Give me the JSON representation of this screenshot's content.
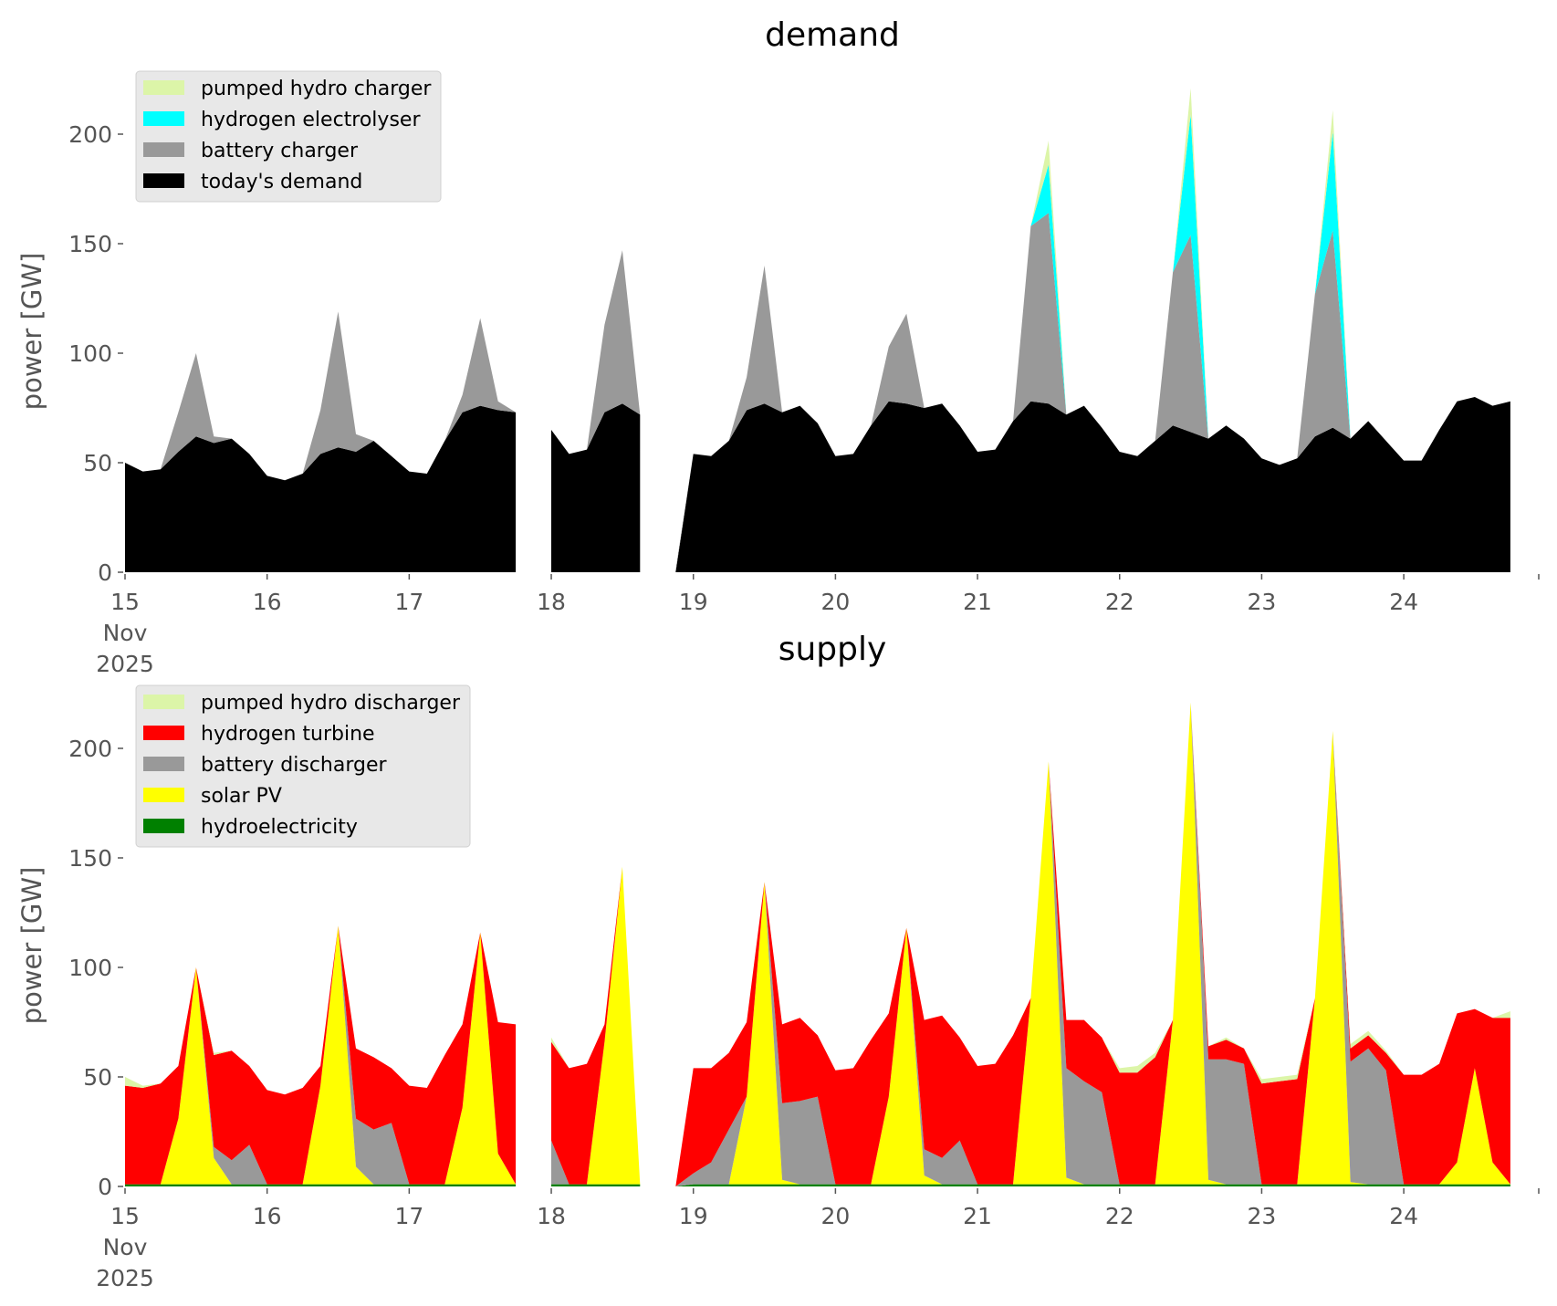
{
  "chart_data": [
    {
      "type": "area",
      "stacked": true,
      "title": "demand",
      "xlabel": "",
      "ylabel": "power [GW]",
      "xlim": [
        "2025-11-15 00:00",
        "2025-11-25 00:00"
      ],
      "ylim": [
        0,
        230
      ],
      "yticks": [
        0,
        50,
        100,
        150,
        200
      ],
      "xtick_labels": [
        [
          "15",
          "Nov",
          "2025"
        ],
        [
          "16"
        ],
        [
          "17"
        ],
        [
          "18"
        ],
        [
          "19"
        ],
        [
          "20"
        ],
        [
          "21"
        ],
        [
          "22"
        ],
        [
          "23"
        ],
        [
          "24"
        ]
      ],
      "grid": false,
      "legend_position": "top-left",
      "x_days": [
        0,
        0.125,
        0.25,
        0.375,
        0.5,
        0.625,
        0.75,
        0.875,
        1,
        1.125,
        1.25,
        1.375,
        1.5,
        1.625,
        1.75,
        1.875,
        2,
        2.125,
        2.25,
        2.375,
        2.5,
        2.625,
        2.75,
        2.875,
        3,
        3.125,
        3.25,
        3.375,
        3.5,
        3.625,
        3.75,
        3.875,
        4,
        4.125,
        4.25,
        4.375,
        4.5,
        4.625,
        4.75,
        4.875,
        5,
        5.125,
        5.25,
        5.375,
        5.5,
        5.625,
        5.75,
        5.875,
        6,
        6.125,
        6.25,
        6.375,
        6.5,
        6.625,
        6.75,
        6.875,
        7,
        7.125,
        7.25,
        7.375,
        7.5,
        7.625,
        7.75,
        7.875,
        8,
        8.125,
        8.25,
        8.375,
        8.5,
        8.625,
        8.75,
        8.875,
        9,
        9.125,
        9.25,
        9.375,
        9.5,
        9.625,
        9.75
      ],
      "series": [
        {
          "name": "today's demand",
          "color": "#000000",
          "values": [
            50,
            46,
            47,
            55,
            62,
            59,
            61,
            54,
            44,
            42,
            45,
            54,
            57,
            55,
            60,
            53,
            46,
            45,
            60,
            73,
            76,
            74,
            73,
            null,
            65,
            54,
            56,
            73,
            77,
            72,
            null,
            0,
            54,
            53,
            60,
            74,
            77,
            73,
            76,
            68,
            53,
            54,
            67,
            78,
            77,
            75,
            77,
            67,
            55,
            56,
            69,
            78,
            77,
            72,
            76,
            66,
            55,
            53,
            60,
            67,
            64,
            61,
            67,
            61,
            52,
            49,
            52,
            62,
            66,
            61,
            69,
            60,
            51,
            51,
            65,
            78,
            80,
            76,
            78
          ]
        },
        {
          "name": "battery charger",
          "color": "#999999",
          "values": [
            0,
            0,
            0,
            18,
            38,
            3,
            0,
            0,
            0,
            0,
            0,
            20,
            62,
            8,
            0,
            0,
            0,
            0,
            0,
            8,
            40,
            4,
            0,
            null,
            0,
            0,
            0,
            40,
            70,
            0,
            null,
            1,
            0,
            0,
            0,
            15,
            63,
            0,
            0,
            0,
            0,
            0,
            0,
            25,
            41,
            0,
            0,
            0,
            0,
            0,
            0,
            80,
            87,
            0,
            0,
            0,
            0,
            0,
            0,
            70,
            90,
            0,
            0,
            0,
            0,
            0,
            0,
            65,
            90,
            0,
            0,
            0,
            0,
            0,
            0,
            0,
            0,
            0,
            0
          ]
        },
        {
          "name": "hydrogen electrolyser",
          "color": "#00ffff",
          "values": [
            0,
            0,
            0,
            0,
            0,
            0,
            0,
            0,
            0,
            0,
            0,
            0,
            0,
            0,
            0,
            0,
            0,
            0,
            0,
            0,
            0,
            0,
            0,
            null,
            0,
            0,
            0,
            0,
            0,
            0,
            null,
            0,
            0,
            0,
            0,
            0,
            0,
            0,
            0,
            0,
            0,
            0,
            0,
            0,
            0,
            0,
            0,
            0,
            0,
            0,
            0,
            0,
            22,
            0,
            0,
            0,
            0,
            0,
            0,
            0,
            55,
            0,
            0,
            0,
            0,
            0,
            0,
            0,
            45,
            0,
            0,
            0,
            0,
            0,
            0,
            0,
            0,
            0,
            0
          ]
        },
        {
          "name": "pumped hydro charger",
          "color": "#dcf5a8",
          "values": [
            0,
            0,
            0,
            0,
            0,
            0,
            0,
            0,
            0,
            0,
            0,
            0,
            0,
            0,
            0,
            0,
            0,
            0,
            0,
            0,
            0,
            0,
            0,
            null,
            0,
            0,
            0,
            0,
            0,
            0,
            null,
            0,
            0,
            0,
            0,
            0,
            0,
            0,
            0,
            0,
            0,
            0,
            0,
            0,
            0,
            0,
            0,
            0,
            0,
            0,
            0,
            0,
            11,
            0,
            0,
            0,
            0,
            0,
            0,
            0,
            12,
            0,
            0,
            0,
            0,
            0,
            0,
            0,
            10,
            0,
            0,
            0,
            0,
            0,
            0,
            0,
            0,
            0,
            0
          ]
        }
      ],
      "legend": [
        "pumped hydro charger",
        "hydrogen electrolyser",
        "battery charger",
        "today's demand"
      ]
    },
    {
      "type": "area",
      "stacked": true,
      "title": "supply",
      "xlabel": "",
      "ylabel": "power [GW]",
      "xlim": [
        "2025-11-15 00:00",
        "2025-11-25 00:00"
      ],
      "ylim": [
        0,
        230
      ],
      "yticks": [
        0,
        50,
        100,
        150,
        200
      ],
      "xtick_labels": [
        [
          "15",
          "Nov",
          "2025"
        ],
        [
          "16"
        ],
        [
          "17"
        ],
        [
          "18"
        ],
        [
          "19"
        ],
        [
          "20"
        ],
        [
          "21"
        ],
        [
          "22"
        ],
        [
          "23"
        ],
        [
          "24"
        ]
      ],
      "grid": false,
      "legend_position": "top-left",
      "x_days": [
        0,
        0.125,
        0.25,
        0.375,
        0.5,
        0.625,
        0.75,
        0.875,
        1,
        1.125,
        1.25,
        1.375,
        1.5,
        1.625,
        1.75,
        1.875,
        2,
        2.125,
        2.25,
        2.375,
        2.5,
        2.625,
        2.75,
        2.875,
        3,
        3.125,
        3.25,
        3.375,
        3.5,
        3.625,
        3.75,
        3.875,
        4,
        4.125,
        4.25,
        4.375,
        4.5,
        4.625,
        4.75,
        4.875,
        5,
        5.125,
        5.25,
        5.375,
        5.5,
        5.625,
        5.75,
        5.875,
        6,
        6.125,
        6.25,
        6.375,
        6.5,
        6.625,
        6.75,
        6.875,
        7,
        7.125,
        7.25,
        7.375,
        7.5,
        7.625,
        7.75,
        7.875,
        8,
        8.125,
        8.25,
        8.375,
        8.5,
        8.625,
        8.75,
        8.875,
        9,
        9.125,
        9.25,
        9.375,
        9.5,
        9.625,
        9.75
      ],
      "series": [
        {
          "name": "hydroelectricity",
          "color": "#008000",
          "values": [
            1,
            1,
            1,
            1,
            1,
            1,
            1,
            1,
            1,
            1,
            1,
            1,
            1,
            1,
            1,
            1,
            1,
            1,
            1,
            1,
            1,
            1,
            1,
            null,
            1,
            1,
            1,
            1,
            1,
            1,
            null,
            0,
            1,
            1,
            1,
            1,
            1,
            1,
            1,
            1,
            1,
            1,
            1,
            1,
            1,
            1,
            1,
            1,
            1,
            1,
            1,
            1,
            1,
            1,
            1,
            1,
            1,
            1,
            1,
            1,
            1,
            1,
            1,
            1,
            1,
            1,
            1,
            1,
            1,
            1,
            1,
            1,
            1,
            1,
            1,
            1,
            1,
            1,
            1
          ]
        },
        {
          "name": "solar PV",
          "color": "#ffff00",
          "values": [
            0,
            0,
            0,
            30,
            99,
            12,
            0,
            0,
            0,
            0,
            0,
            45,
            118,
            8,
            0,
            0,
            0,
            0,
            0,
            35,
            115,
            14,
            0,
            null,
            0,
            0,
            0,
            65,
            145,
            0,
            null,
            0,
            0,
            0,
            0,
            40,
            138,
            2,
            0,
            0,
            0,
            0,
            0,
            40,
            117,
            4,
            0,
            0,
            0,
            0,
            0,
            85,
            193,
            3,
            0,
            0,
            0,
            0,
            0,
            75,
            220,
            2,
            0,
            0,
            0,
            0,
            0,
            85,
            207,
            1,
            0,
            0,
            0,
            0,
            0,
            10,
            53,
            10,
            0
          ]
        },
        {
          "name": "battery discharger",
          "color": "#999999",
          "values": [
            0,
            0,
            0,
            0,
            0,
            5,
            11,
            18,
            0,
            0,
            0,
            0,
            0,
            22,
            25,
            28,
            0,
            0,
            0,
            0,
            0,
            0,
            0,
            null,
            20,
            0,
            0,
            0,
            0,
            0,
            null,
            0,
            5,
            10,
            25,
            0,
            0,
            35,
            38,
            40,
            0,
            0,
            0,
            0,
            0,
            12,
            12,
            20,
            0,
            0,
            0,
            0,
            0,
            50,
            47,
            42,
            0,
            0,
            0,
            0,
            0,
            55,
            57,
            55,
            0,
            0,
            0,
            0,
            0,
            55,
            62,
            52,
            0,
            0,
            0,
            0,
            0,
            0,
            0
          ]
        },
        {
          "name": "hydrogen turbine",
          "color": "#ff0000",
          "values": [
            45,
            44,
            46,
            24,
            0,
            42,
            50,
            36,
            43,
            41,
            44,
            9,
            0,
            32,
            33,
            25,
            45,
            44,
            59,
            38,
            0,
            60,
            73,
            null,
            45,
            53,
            55,
            8,
            0,
            0,
            null,
            0,
            48,
            43,
            35,
            34,
            0,
            36,
            38,
            28,
            52,
            53,
            66,
            38,
            0,
            59,
            65,
            47,
            54,
            55,
            68,
            0,
            0,
            22,
            28,
            25,
            51,
            51,
            58,
            0,
            0,
            6,
            9,
            7,
            46,
            47,
            48,
            0,
            0,
            6,
            6,
            8,
            50,
            50,
            55,
            68,
            27,
            66,
            76
          ]
        },
        {
          "name": "pumped hydro discharger",
          "color": "#dcf5a8",
          "values": [
            4,
            1,
            0,
            0,
            0,
            1,
            0,
            0,
            0,
            0,
            0,
            0,
            0,
            0,
            0,
            0,
            0,
            0,
            0,
            0,
            0,
            0,
            0,
            null,
            2,
            0,
            0,
            0,
            0,
            0,
            null,
            0,
            0,
            0,
            0,
            0,
            0,
            0,
            0,
            0,
            0,
            0,
            0,
            0,
            0,
            0,
            0,
            0,
            0,
            0,
            0,
            0,
            0,
            0,
            0,
            0,
            2,
            3,
            2,
            0,
            0,
            0,
            1,
            0,
            2,
            2,
            2,
            0,
            0,
            2,
            2,
            1,
            0,
            0,
            0,
            0,
            0,
            0,
            3
          ]
        }
      ],
      "legend": [
        "pumped hydro discharger",
        "hydrogen turbine",
        "battery discharger",
        "solar PV",
        "hydroelectricity"
      ]
    }
  ]
}
